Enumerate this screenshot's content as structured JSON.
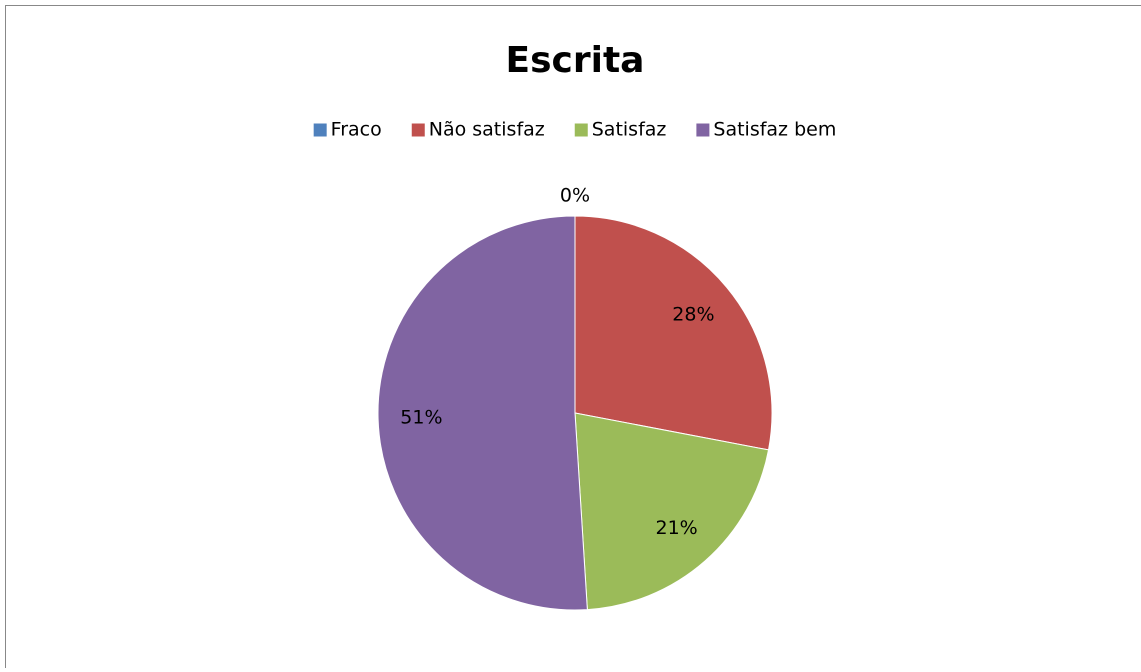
{
  "chart_data": {
    "type": "pie",
    "title": "Escrita",
    "categories": [
      "Fraco",
      "Não satisfaz",
      "Satisfaz",
      "Satisfaz bem"
    ],
    "values": [
      0,
      28,
      21,
      51
    ],
    "value_labels": [
      "0%",
      "28%",
      "21%",
      "51%"
    ],
    "colors": [
      "#4f81bd",
      "#c0504d",
      "#9bbb59",
      "#8064a2"
    ],
    "legend": "top"
  }
}
